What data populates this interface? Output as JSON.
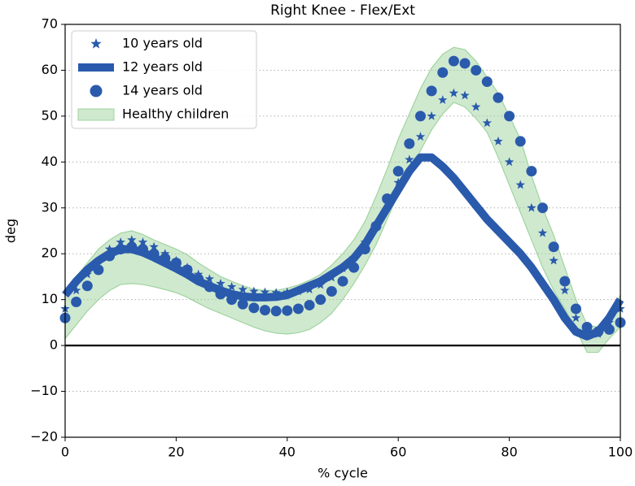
{
  "chart_data": {
    "type": "line",
    "title": "Right Knee - Flex/Ext",
    "xlabel": "% cycle",
    "ylabel": "deg",
    "x": [
      0,
      2,
      4,
      6,
      8,
      10,
      12,
      14,
      16,
      18,
      20,
      22,
      24,
      26,
      28,
      30,
      32,
      34,
      36,
      38,
      40,
      42,
      44,
      46,
      48,
      50,
      52,
      54,
      56,
      58,
      60,
      62,
      64,
      66,
      68,
      70,
      72,
      74,
      76,
      78,
      80,
      82,
      84,
      86,
      88,
      90,
      92,
      94,
      96,
      98,
      100
    ],
    "series": [
      {
        "name": "10 years old",
        "color": "#2a5aac",
        "marker": "star",
        "values": [
          8,
          12,
          15.5,
          18.5,
          21,
          22.5,
          23,
          22.5,
          21.5,
          20,
          18.5,
          17,
          15.5,
          14.5,
          13.5,
          12.8,
          12.2,
          11.8,
          11.6,
          11.5,
          11.6,
          11.8,
          12.2,
          13.2,
          14.8,
          16.8,
          19.2,
          22.5,
          26.5,
          31,
          35.5,
          40.5,
          45.5,
          50,
          53.5,
          55,
          54.5,
          52,
          48.5,
          44.5,
          40,
          35,
          30,
          24.5,
          18.5,
          12,
          6,
          2.5,
          2.5,
          5,
          8
        ]
      },
      {
        "name": "12 years old",
        "color": "#2a5aac",
        "marker": "line",
        "values": [
          11,
          14,
          16.5,
          18.5,
          20,
          21,
          21,
          20.3,
          19.2,
          18,
          16.8,
          15.5,
          14,
          13,
          12,
          11.2,
          10.7,
          10.5,
          10.5,
          10.6,
          11,
          12,
          13,
          14,
          15.5,
          17,
          19,
          22,
          26,
          30,
          34,
          38,
          41,
          41,
          39,
          36.5,
          33.5,
          30.5,
          27.5,
          25,
          22.5,
          20,
          17,
          13.5,
          10,
          6,
          3,
          2,
          3,
          6,
          10
        ]
      },
      {
        "name": "14 years old",
        "color": "#2a5aac",
        "marker": "circle",
        "values": [
          6,
          9.5,
          13,
          16.5,
          19.5,
          21,
          21.5,
          21,
          20,
          19,
          18,
          16.5,
          14.5,
          12.8,
          11.2,
          10,
          9,
          8.2,
          7.7,
          7.5,
          7.6,
          8,
          8.8,
          10,
          11.8,
          14,
          17,
          21,
          26,
          32,
          38,
          44,
          50,
          55.5,
          59.5,
          62,
          61.5,
          60,
          57.5,
          54,
          50,
          44.5,
          38,
          30,
          21.5,
          14,
          8,
          4,
          3,
          3.5,
          5
        ]
      }
    ],
    "band": {
      "name": "Healthy children",
      "color": "#9fd49f",
      "lower": [
        1.5,
        4.5,
        7.5,
        10,
        12,
        13.3,
        13.5,
        13.3,
        12.8,
        12.2,
        11.5,
        10.5,
        9.2,
        8,
        7,
        6,
        5,
        4,
        3.2,
        2.7,
        2.5,
        2.8,
        3.5,
        5,
        7,
        10,
        13.5,
        17.5,
        22,
        27.5,
        33,
        38,
        42.5,
        47,
        50.5,
        53,
        52,
        49.5,
        46.5,
        41,
        35,
        29,
        23,
        17,
        12,
        8,
        3.5,
        -1.5,
        -1.5,
        1.5,
        4
      ],
      "upper": [
        12,
        15,
        18,
        21,
        23,
        24.5,
        25,
        24.2,
        23,
        22,
        21,
        19.8,
        18,
        16.5,
        15,
        14,
        13,
        12.3,
        12,
        12,
        12.5,
        13.2,
        14.2,
        15.5,
        17.5,
        20,
        23,
        27,
        32.5,
        38.5,
        45,
        50.5,
        56,
        60.5,
        63.5,
        65,
        64.5,
        62,
        58.5,
        55,
        50,
        45,
        37,
        30,
        24,
        17,
        10,
        4.5,
        4,
        6,
        11
      ]
    },
    "xlim": [
      0,
      100
    ],
    "xticks": [
      0,
      20,
      40,
      60,
      80,
      100
    ],
    "ylim": [
      -20,
      70
    ],
    "yticks": [
      {
        "value": -20,
        "label": "−20"
      },
      {
        "value": -10,
        "label": "−10"
      },
      0,
      10,
      20,
      30,
      40,
      50,
      60,
      70
    ],
    "grid": "y",
    "zero_line": true,
    "legend": "upper left"
  }
}
